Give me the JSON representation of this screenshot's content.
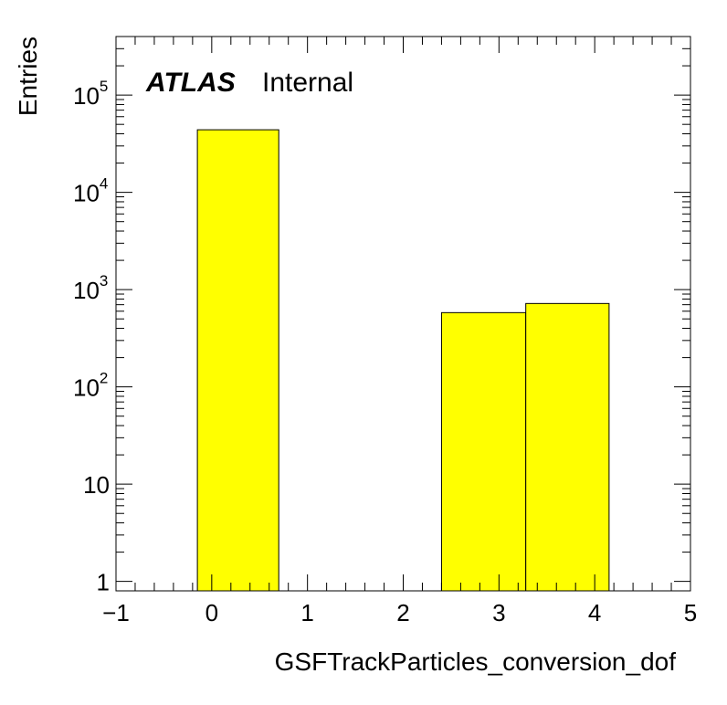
{
  "chart_data": {
    "type": "bar",
    "title": "",
    "xlabel": "GSFTrackParticles_conversion_dof",
    "ylabel": "Entries",
    "xlim": [
      -1,
      5
    ],
    "ylim": [
      0.8,
      400000
    ],
    "yscale": "log",
    "grid": false,
    "bins": [
      {
        "x_low": -0.15,
        "x_high": 0.7,
        "value": 44000
      },
      {
        "x_low": 0.7,
        "x_high": 2.4,
        "value": 0
      },
      {
        "x_low": 2.4,
        "x_high": 3.28,
        "value": 580
      },
      {
        "x_low": 3.28,
        "x_high": 4.15,
        "value": 720
      }
    ],
    "fill_color": "#ffff00",
    "x_tick_labels": [
      "−1",
      "0",
      "1",
      "2",
      "3",
      "4",
      "5"
    ],
    "y_tick_labels": [
      "1",
      "10",
      "10",
      "10",
      "10",
      "10"
    ],
    "y_tick_exponents": [
      "",
      "",
      "2",
      "3",
      "4",
      "5"
    ]
  },
  "label": {
    "experiment": "ATLAS",
    "status": "Internal"
  }
}
